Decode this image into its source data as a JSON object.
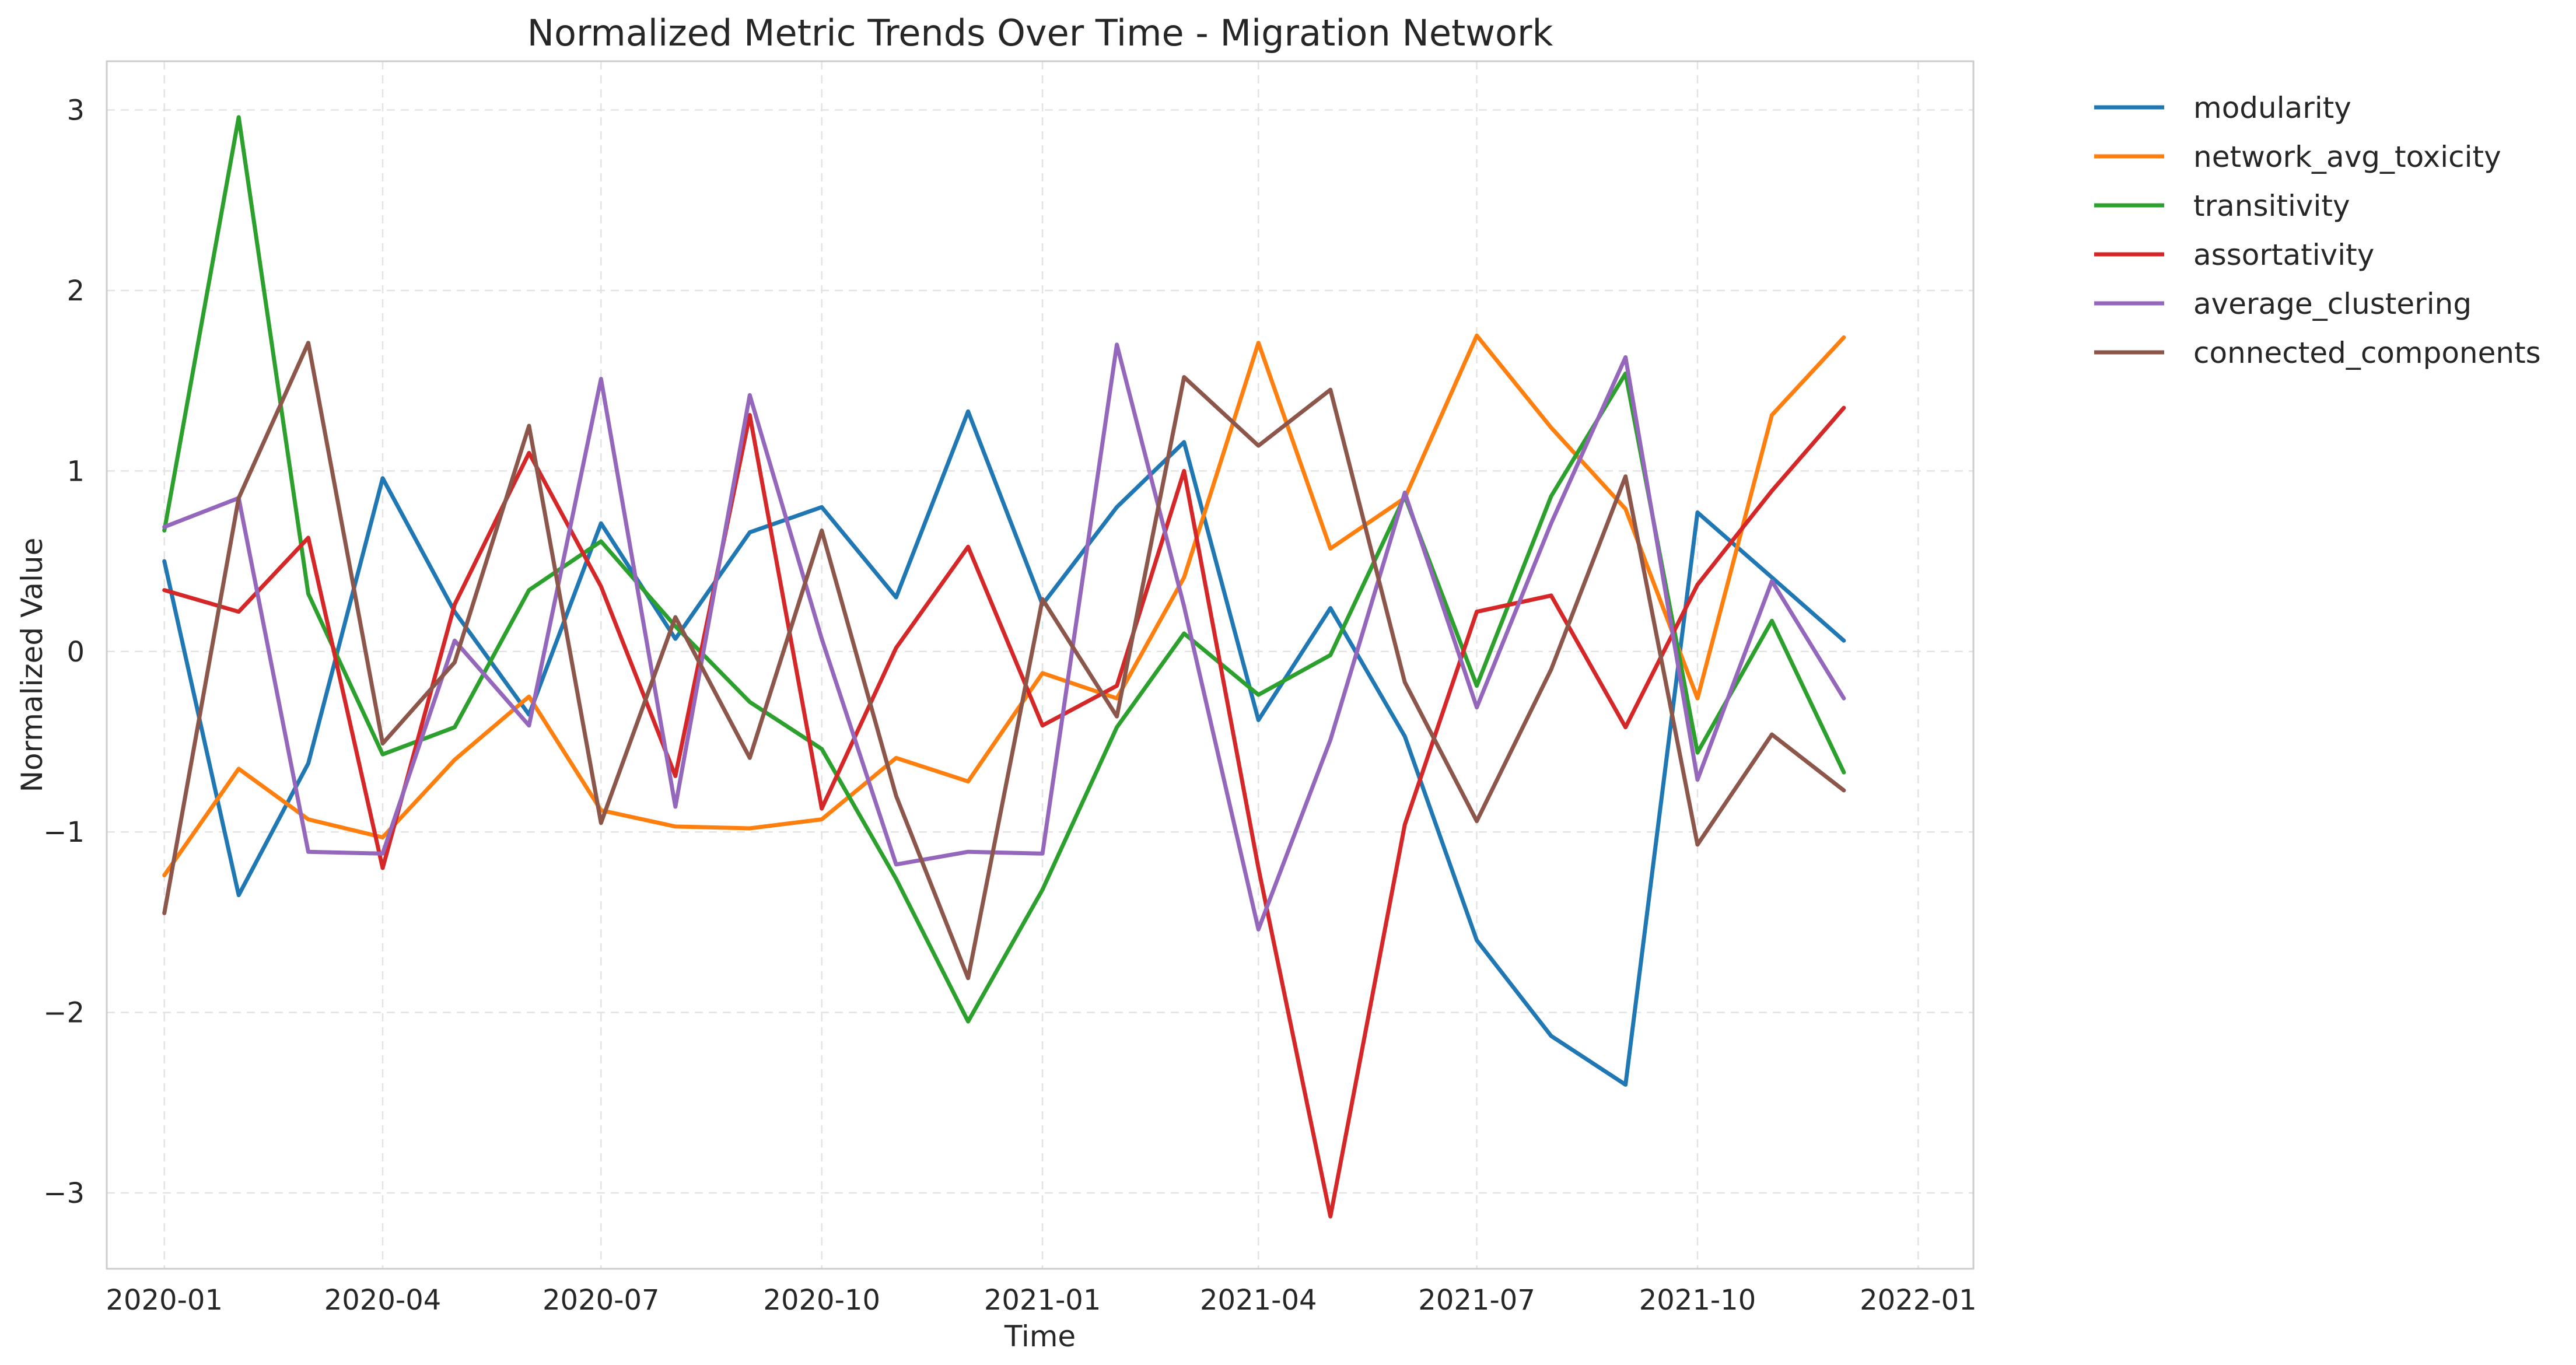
{
  "chart_data": {
    "type": "line",
    "title": "Normalized Metric Trends Over Time - Migration Network",
    "xlabel": "Time",
    "ylabel": "Normalized Value",
    "x": [
      "2020-01",
      "2020-02",
      "2020-03",
      "2020-04",
      "2020-05",
      "2020-06",
      "2020-07",
      "2020-08",
      "2020-09",
      "2020-10",
      "2020-11",
      "2020-12",
      "2021-01",
      "2021-02",
      "2021-03",
      "2021-04",
      "2021-05",
      "2021-06",
      "2021-07",
      "2021-08",
      "2021-09",
      "2021-10",
      "2021-11",
      "2021-12"
    ],
    "x_ticks": [
      "2020-01",
      "2020-04",
      "2020-07",
      "2020-10",
      "2021-01",
      "2021-04",
      "2021-07",
      "2021-10",
      "2022-01"
    ],
    "y_ticks": [
      "−3",
      "−2",
      "−1",
      "0",
      "1",
      "2",
      "3"
    ],
    "ylim": [
      -3.42,
      3.27
    ],
    "xlim": [
      "2019-12-08",
      "2022-01-24"
    ],
    "grid": true,
    "legend_position": "outside-top-right",
    "series": [
      {
        "name": "modularity",
        "color": "#1f77b4",
        "values": [
          0.5,
          -1.35,
          -0.62,
          0.96,
          0.22,
          -0.35,
          0.71,
          0.07,
          0.66,
          0.8,
          0.3,
          1.33,
          0.26,
          0.8,
          1.16,
          -0.38,
          0.24,
          -0.47,
          -1.6,
          -2.13,
          -2.4,
          0.77,
          0.41,
          0.06
        ]
      },
      {
        "name": "network_avg_toxicity",
        "color": "#ff7f0e",
        "values": [
          -1.24,
          -0.65,
          -0.93,
          -1.03,
          -0.6,
          -0.25,
          -0.88,
          -0.97,
          -0.98,
          -0.93,
          -0.59,
          -0.72,
          -0.12,
          -0.26,
          0.41,
          1.71,
          0.57,
          0.85,
          1.75,
          1.24,
          0.79,
          -0.26,
          1.31,
          1.74
        ]
      },
      {
        "name": "transitivity",
        "color": "#2ca02c",
        "values": [
          0.67,
          2.96,
          0.32,
          -0.57,
          -0.42,
          0.34,
          0.61,
          0.14,
          -0.28,
          -0.54,
          -1.26,
          -2.05,
          -1.32,
          -0.42,
          0.1,
          -0.24,
          -0.02,
          0.86,
          -0.19,
          0.86,
          1.54,
          -0.56,
          0.17,
          -0.67
        ]
      },
      {
        "name": "assortativity",
        "color": "#d62728",
        "values": [
          0.34,
          0.22,
          0.63,
          -1.2,
          0.26,
          1.1,
          0.36,
          -0.69,
          1.31,
          -0.87,
          0.02,
          0.58,
          -0.41,
          -0.19,
          1.0,
          -1.2,
          -3.13,
          -0.96,
          0.22,
          0.31,
          -0.42,
          0.37,
          0.89,
          1.35
        ]
      },
      {
        "name": "average_clustering",
        "color": "#9467bd",
        "values": [
          0.69,
          0.85,
          -1.11,
          -1.12,
          0.06,
          -0.41,
          1.51,
          -0.86,
          1.42,
          0.07,
          -1.18,
          -1.11,
          -1.12,
          1.7,
          0.25,
          -1.54,
          -0.49,
          0.88,
          -0.31,
          0.71,
          1.63,
          -0.71,
          0.39,
          -0.26
        ]
      },
      {
        "name": "connected_components",
        "color": "#8c564b",
        "values": [
          -1.45,
          0.85,
          1.71,
          -0.51,
          -0.06,
          1.25,
          -0.95,
          0.19,
          -0.59,
          0.67,
          -0.8,
          -1.81,
          0.29,
          -0.36,
          1.52,
          1.14,
          1.45,
          -0.17,
          -0.94,
          -0.1,
          0.97,
          -1.07,
          -0.46,
          -0.77
        ]
      }
    ]
  }
}
